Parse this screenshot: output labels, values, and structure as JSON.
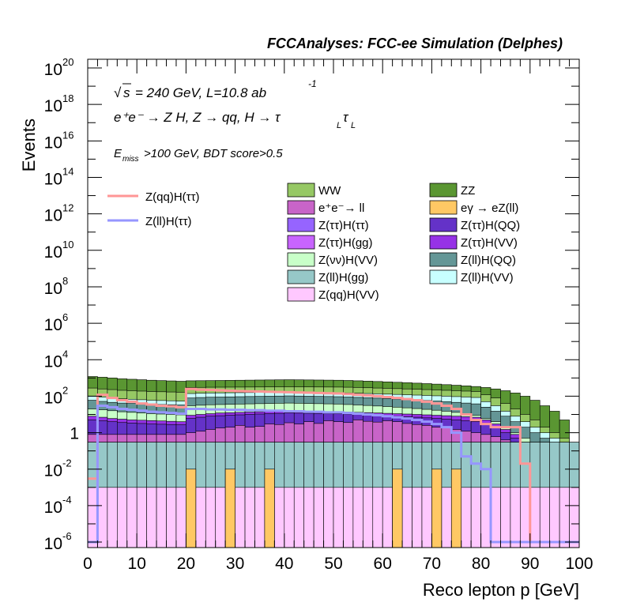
{
  "header": {
    "title": "FCCAnalyses: FCC-ee Simulation (Delphes)"
  },
  "annotations": {
    "sqrt_s": "s",
    "energy_lumi": "= 240 GeV, L=10.8 ab",
    "lumi_exp": "-1",
    "process": "e⁺e⁻ → Z H, Z → qq, H → τ",
    "tau_sub": "L",
    "tau2": "τ",
    "tau2_sub": "L",
    "emiss": "E",
    "emiss_sub": "miss",
    "selection": ">100 GeV, BDT score>0.5"
  },
  "colors": {
    "WW": "#96c864",
    "ZZ": "#5a9632",
    "ee_ll": "#c864c8",
    "egamma": "#ffc864",
    "ztt_htt": "#9664ff",
    "ztt_hqq": "#6432c8",
    "ztt_hgg": "#c864ff",
    "ztt_hvv": "#9632e6",
    "znn_hvv": "#c8ffc8",
    "zll_hqq": "#649696",
    "zll_hgg": "#96c8c8",
    "zll_hvv": "#c8ffff",
    "zqq_hvv": "#ffc8ff",
    "sig_qq": "#ff9696",
    "sig_ll": "#9696ff"
  },
  "chart_data": {
    "type": "histogram-stack",
    "title": "FCCAnalyses: FCC-ee Simulation (Delphes)",
    "xlabel": "Reco lepton p [GeV]",
    "ylabel": "Events",
    "xlim": [
      0,
      100
    ],
    "ylim": [
      5e-07,
      3e+20
    ],
    "ylog": true,
    "bin_width": 2,
    "x_ticks": [
      "0",
      "10",
      "20",
      "30",
      "40",
      "50",
      "60",
      "70",
      "80",
      "90",
      "100"
    ],
    "y_ticks": [
      {
        "base": "10",
        "exp": "-6",
        "value": 1e-06
      },
      {
        "base": "10",
        "exp": "-4",
        "value": 0.0001
      },
      {
        "base": "10",
        "exp": "-2",
        "value": 0.01
      },
      {
        "base": "1",
        "exp": "",
        "value": 1
      },
      {
        "base": "10",
        "exp": "2",
        "value": 100.0
      },
      {
        "base": "10",
        "exp": "4",
        "value": 10000.0
      },
      {
        "base": "10",
        "exp": "6",
        "value": 1000000.0
      },
      {
        "base": "10",
        "exp": "8",
        "value": 100000000.0
      },
      {
        "base": "10",
        "exp": "10",
        "value": 10000000000.0
      },
      {
        "base": "10",
        "exp": "12",
        "value": 1000000000000.0
      },
      {
        "base": "10",
        "exp": "14",
        "value": 100000000000000.0
      },
      {
        "base": "10",
        "exp": "16",
        "value": 1e+16
      },
      {
        "base": "10",
        "exp": "18",
        "value": 1e+18
      },
      {
        "base": "10",
        "exp": "20",
        "value": 1e+20
      }
    ],
    "legend_backgrounds": [
      {
        "label": "WW",
        "color": "#96c864"
      },
      {
        "label": "ZZ",
        "color": "#5a9632"
      },
      {
        "label": "e⁺e⁻→ ll",
        "color": "#c864c8"
      },
      {
        "label": "eγ → eZ(ll)",
        "color": "#ffc864"
      },
      {
        "label": "Z(ττ)H(ττ)",
        "color": "#9664ff"
      },
      {
        "label": "Z(ττ)H(QQ)",
        "color": "#6432c8"
      },
      {
        "label": "Z(ττ)H(gg)",
        "color": "#c864ff"
      },
      {
        "label": "Z(ττ)H(VV)",
        "color": "#9632e6"
      },
      {
        "label": "Z(νν)H(VV)",
        "color": "#c8ffc8"
      },
      {
        "label": "Z(ll)H(QQ)",
        "color": "#649696"
      },
      {
        "label": "Z(ll)H(gg)",
        "color": "#96c8c8"
      },
      {
        "label": "Z(ll)H(VV)",
        "color": "#c8ffff"
      },
      {
        "label": "Z(qq)H(VV)",
        "color": "#ffc8ff"
      }
    ],
    "legend_signals": [
      {
        "label": "Z(qq)H(ττ)",
        "color": "#ff9696"
      },
      {
        "label": "Z(ll)H(ττ)",
        "color": "#9696ff"
      }
    ],
    "stack_boundaries": [
      {
        "name": "zqq_hvv",
        "color": "#ffc8ff",
        "values": [
          0.001,
          0.001,
          0.001,
          0.001,
          0.001,
          0.001,
          0.001,
          0.001,
          0.001,
          0.001,
          0.001,
          0.001,
          0.001,
          0.001,
          0.001,
          0.001,
          0.001,
          0.001,
          0.001,
          0.001,
          0.001,
          0.001,
          0.001,
          0.001,
          0.001,
          0.001,
          0.001,
          0.001,
          0.001,
          0.001,
          0.001,
          0.001,
          0.001,
          0.001,
          0.001,
          0.001,
          0.001,
          0.001,
          0.001,
          0.001,
          0.001,
          0.001,
          0.001,
          0.001,
          0.001,
          0.001,
          0.001,
          0.001,
          0.001,
          0.001
        ]
      },
      {
        "name": "zll_hgg",
        "color": "#96c8c8",
        "values": [
          0.3,
          0.3,
          0.3,
          0.3,
          0.3,
          0.3,
          0.3,
          0.3,
          0.3,
          0.3,
          0.3,
          0.3,
          0.3,
          0.3,
          0.3,
          0.3,
          0.3,
          0.3,
          0.3,
          0.3,
          0.3,
          0.3,
          0.3,
          0.3,
          0.3,
          0.3,
          0.3,
          0.3,
          0.3,
          0.3,
          0.3,
          0.3,
          0.3,
          0.3,
          0.3,
          0.3,
          0.3,
          0.3,
          0.3,
          0.3,
          0.3,
          0.3,
          0.3,
          0.3,
          0.3,
          0.3,
          0.3,
          0.3,
          0.3,
          0.3
        ]
      },
      {
        "name": "ztt_hgg",
        "color": "#c864ff",
        "values": [
          0.3,
          0.3,
          0.3,
          0.3,
          0.3,
          0.3,
          0.3,
          0.3,
          0.3,
          0.3,
          0.3,
          0.3,
          0.3,
          0.3,
          0.3,
          0.3,
          0.3,
          0.3,
          0.3,
          0.3,
          0.3,
          0.3,
          0.3,
          0.3,
          0.3,
          0.3,
          0.3,
          0.3,
          0.3,
          0.3,
          0.3,
          0.3,
          0.3,
          0.3,
          0.3,
          0.3,
          0.3,
          0.3,
          0.3,
          0.3,
          0.3,
          0.3,
          0.3,
          0.3,
          0.3,
          0.3,
          0.3,
          0.3,
          0.3,
          0.3
        ]
      },
      {
        "name": "ee_ll",
        "color": "#c864c8",
        "values": [
          0.8,
          0.8,
          0.8,
          0.8,
          0.8,
          0.8,
          0.8,
          0.8,
          0.8,
          0.8,
          1,
          1.2,
          1.5,
          1.8,
          2,
          2.5,
          2,
          2.2,
          3,
          2.8,
          3.5,
          3,
          4,
          3.2,
          4.5,
          4,
          3.6,
          5,
          4.2,
          3.8,
          4.5,
          4,
          3.2,
          2.8,
          2.5,
          2,
          1.8,
          1.5,
          1.2,
          1,
          0.8,
          0.6,
          0.4,
          0.2,
          0.1,
          0.05,
          0.02,
          0.01,
          0.005,
          0.003
        ]
      },
      {
        "name": "ztt_hqq",
        "color": "#6432c8",
        "values": [
          5,
          4.5,
          4,
          3.6,
          3.4,
          3.2,
          3,
          2.9,
          2.8,
          2.7,
          6,
          7,
          8,
          8.5,
          9,
          9.5,
          10,
          10.5,
          11,
          11.5,
          12,
          11.8,
          11.6,
          11.4,
          11.2,
          11,
          10.5,
          10,
          9.5,
          9,
          8.5,
          8,
          7.5,
          7,
          6.5,
          6,
          5.5,
          5,
          4.5,
          4,
          3,
          2,
          1,
          0.5,
          0.2,
          0.1,
          0.05,
          0.02,
          0.01,
          0.005
        ]
      },
      {
        "name": "ztt_hvv",
        "color": "#9632e6",
        "values": [
          8,
          7,
          6,
          5.5,
          5,
          4.8,
          4.6,
          4.4,
          4.2,
          4,
          9,
          10,
          11,
          12,
          12.5,
          13,
          13.5,
          14,
          14.5,
          15,
          15.5,
          15.2,
          14.9,
          14.6,
          14.3,
          14,
          13.5,
          13,
          12.5,
          12,
          11.5,
          11,
          10.5,
          10,
          9.5,
          9,
          8.5,
          8,
          7.5,
          7,
          5,
          3,
          1.5,
          0.8,
          0.3,
          0.1,
          0.05,
          0.02,
          0.01,
          0.005
        ]
      },
      {
        "name": "znn_hvv",
        "color": "#c8ffc8",
        "values": [
          20,
          18,
          16,
          14,
          13,
          12,
          11,
          10.5,
          10,
          9.5,
          30,
          32,
          34,
          35,
          36,
          37,
          38,
          39,
          40,
          41,
          42,
          41,
          40,
          39,
          38,
          37,
          35,
          33,
          31,
          29,
          27,
          25,
          23,
          21,
          19,
          17,
          15,
          13,
          11,
          9,
          6,
          4,
          2,
          1,
          0.5,
          0.2,
          0.1,
          0.05,
          0.02,
          0.01
        ]
      },
      {
        "name": "zll_hqq",
        "color": "#649696",
        "values": [
          60,
          52,
          46,
          42,
          40,
          38,
          36,
          35,
          34,
          33,
          80,
          85,
          88,
          90,
          92,
          94,
          96,
          98,
          100,
          102,
          104,
          102,
          100,
          98,
          96,
          94,
          90,
          86,
          82,
          78,
          74,
          70,
          66,
          62,
          58,
          54,
          50,
          46,
          42,
          38,
          25,
          15,
          8,
          4,
          2,
          1,
          0.5,
          0.2,
          0.1,
          0.05
        ]
      },
      {
        "name": "zll_hvv",
        "color": "#c8ffff",
        "values": [
          100,
          90,
          80,
          72,
          68,
          64,
          60,
          58,
          56,
          54,
          140,
          145,
          150,
          152,
          154,
          156,
          158,
          160,
          162,
          164,
          166,
          164,
          162,
          160,
          158,
          156,
          150,
          145,
          140,
          135,
          130,
          125,
          120,
          115,
          110,
          105,
          100,
          95,
          90,
          85,
          50,
          30,
          15,
          8,
          4,
          2,
          1,
          0.5,
          0.2,
          0.1
        ]
      },
      {
        "name": "WW",
        "color": "#96c864",
        "values": [
          280,
          250,
          230,
          210,
          200,
          190,
          180,
          175,
          170,
          165,
          300,
          305,
          310,
          312,
          314,
          316,
          318,
          320,
          322,
          324,
          326,
          324,
          322,
          320,
          318,
          316,
          310,
          300,
          290,
          280,
          270,
          260,
          250,
          240,
          230,
          220,
          210,
          200,
          190,
          180,
          120,
          80,
          40,
          20,
          10,
          5,
          2,
          1,
          0.5,
          0.2
        ]
      },
      {
        "name": "ZZ",
        "color": "#5a9632",
        "values": [
          1200,
          1100,
          1000,
          900,
          850,
          800,
          750,
          720,
          690,
          660,
          700,
          710,
          720,
          730,
          740,
          750,
          760,
          770,
          780,
          790,
          800,
          790,
          780,
          770,
          760,
          750,
          730,
          700,
          670,
          640,
          610,
          580,
          550,
          520,
          490,
          460,
          430,
          400,
          370,
          340,
          300,
          250,
          200,
          150,
          100,
          60,
          30,
          15,
          5,
          0.02
        ]
      }
    ],
    "egamma_spikes": [
      {
        "x0": 20,
        "x1": 22
      },
      {
        "x0": 28,
        "x1": 30
      },
      {
        "x0": 36,
        "x1": 38
      },
      {
        "x0": 62,
        "x1": 64
      },
      {
        "x0": 70,
        "x1": 72
      },
      {
        "x0": 74,
        "x1": 76
      }
    ],
    "signal_qq": [
      0.003,
      120,
      80,
      60,
      50,
      40,
      35,
      30,
      28,
      25,
      250,
      230,
      220,
      210,
      200,
      190,
      185,
      180,
      175,
      170,
      165,
      160,
      155,
      150,
      145,
      140,
      130,
      120,
      110,
      100,
      90,
      80,
      70,
      60,
      50,
      40,
      30,
      20,
      10,
      5,
      3,
      2,
      2,
      2,
      0.02,
      1e-06,
      1e-06,
      1e-06,
      1e-06,
      1e-06
    ],
    "signal_ll": [
      1e-06,
      30,
      25,
      20,
      18,
      16,
      14,
      13,
      12,
      11,
      20,
      20,
      19,
      19,
      18,
      18,
      17,
      17,
      16,
      16,
      15,
      15,
      14,
      14,
      13,
      13,
      12,
      11,
      10,
      9,
      8,
      7,
      6,
      5,
      4,
      3,
      2,
      1,
      0.05,
      0.02,
      0.01,
      1e-06,
      1e-06,
      1e-06,
      1e-06,
      1e-06,
      1e-06,
      1e-06,
      1e-06,
      1e-06
    ]
  }
}
